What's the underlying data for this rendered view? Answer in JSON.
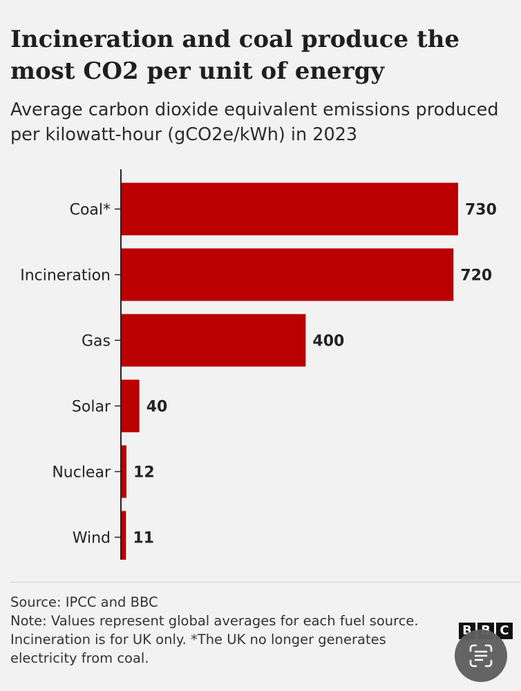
{
  "title": "Incineration and coal produce the most CO2 per unit of energy",
  "subtitle": "Average carbon dioxide equivalent emissions produced per kilowatt-hour (gCO2e/kWh) in 2023",
  "source": "Source: IPCC and BBC",
  "note": "Note: Values represent global averages for each fuel source. Incineration is for UK only. *The UK no longer generates electricity from coal.",
  "logo": {
    "letters": [
      "B",
      "B",
      "C"
    ],
    "icon": "bbc-logo"
  },
  "overlay": {
    "icon": "text-recognition-icon"
  },
  "colors": {
    "bar": "#bb0000",
    "background": "#f2f2f2",
    "axis": "#222222"
  },
  "chart_data": {
    "type": "bar",
    "orientation": "horizontal",
    "categories": [
      "Coal*",
      "Incineration",
      "Gas",
      "Solar",
      "Nuclear",
      "Wind"
    ],
    "values": [
      730,
      720,
      400,
      40,
      12,
      11
    ],
    "xlim": [
      0,
      730
    ],
    "grid": false,
    "data_labels": true
  }
}
